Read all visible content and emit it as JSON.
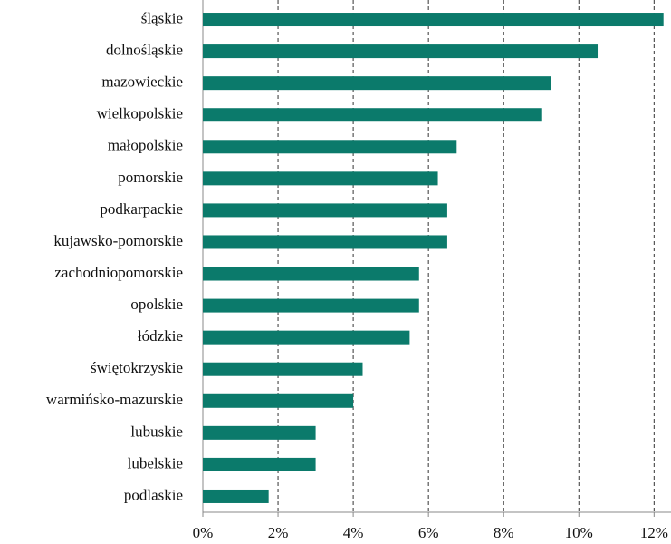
{
  "chart_data": {
    "type": "hbar",
    "categories": [
      "śląskie",
      "dolnośląskie",
      "mazowieckie",
      "wielkopolskie",
      "małopolskie",
      "pomorskie",
      "podkarpackie",
      "kujawsko-pomorskie",
      "zachodniopomorskie",
      "opolskie",
      "łódzkie",
      "świętokrzyskie",
      "warmińsko-mazurskie",
      "lubuskie",
      "lubelskie",
      "podlaskie"
    ],
    "values": [
      12.25,
      10.5,
      9.25,
      9.0,
      6.75,
      6.25,
      6.5,
      6.5,
      5.75,
      5.75,
      5.5,
      4.25,
      4.0,
      3.0,
      3.0,
      1.75
    ],
    "color": "#0b7a6b",
    "xlim": [
      0,
      12.45
    ],
    "xticks": [
      {
        "value": 0,
        "label": "0%"
      },
      {
        "value": 2,
        "label": "2%"
      },
      {
        "value": 4,
        "label": "4%"
      },
      {
        "value": 6,
        "label": "6%"
      },
      {
        "value": 8,
        "label": "8%"
      },
      {
        "value": 10,
        "label": "10%"
      },
      {
        "value": 12,
        "label": "12%"
      }
    ],
    "grid": true
  }
}
